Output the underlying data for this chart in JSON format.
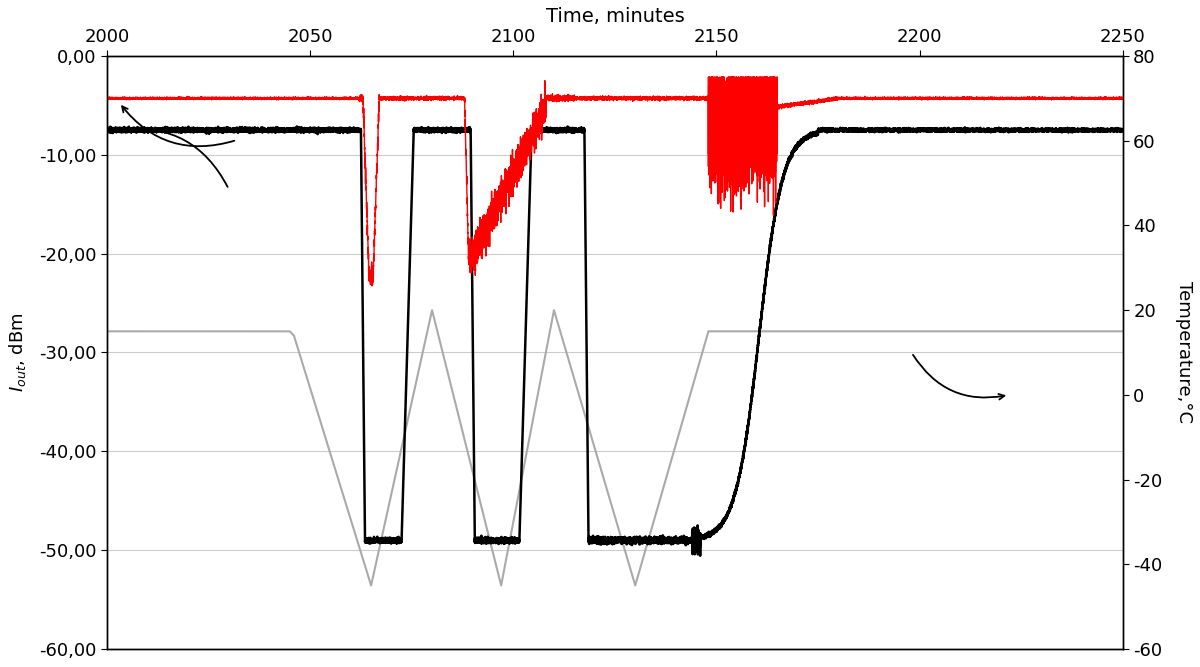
{
  "title": "Time, minutes",
  "ylabel_left": "$I_{out}$, dBm",
  "ylabel_right": "Temperature,°C",
  "xlim": [
    2000,
    2250
  ],
  "ylim_left": [
    -60,
    0
  ],
  "ylim_right": [
    -60,
    80
  ],
  "yticks_left": [
    0,
    -10,
    -20,
    -30,
    -40,
    -50,
    -60
  ],
  "yticks_left_labels": [
    "0,00",
    "-10,00",
    "-20,00",
    "-30,00",
    "-40,00",
    "-50,00",
    "-60,00"
  ],
  "yticks_right": [
    80,
    60,
    40,
    20,
    0,
    -20,
    -40,
    -60
  ],
  "xticks": [
    2000,
    2050,
    2100,
    2150,
    2200,
    2250
  ],
  "bg_color": "#ffffff",
  "grid_color": "#cccccc",
  "base_dbm": -7.5,
  "bottom_dbm": -49.0,
  "red_base_temp": 70.0,
  "gray_flat_temp": 15.0,
  "gray_bottom_temp": -45.0,
  "gray_peak_temp": 20.0
}
